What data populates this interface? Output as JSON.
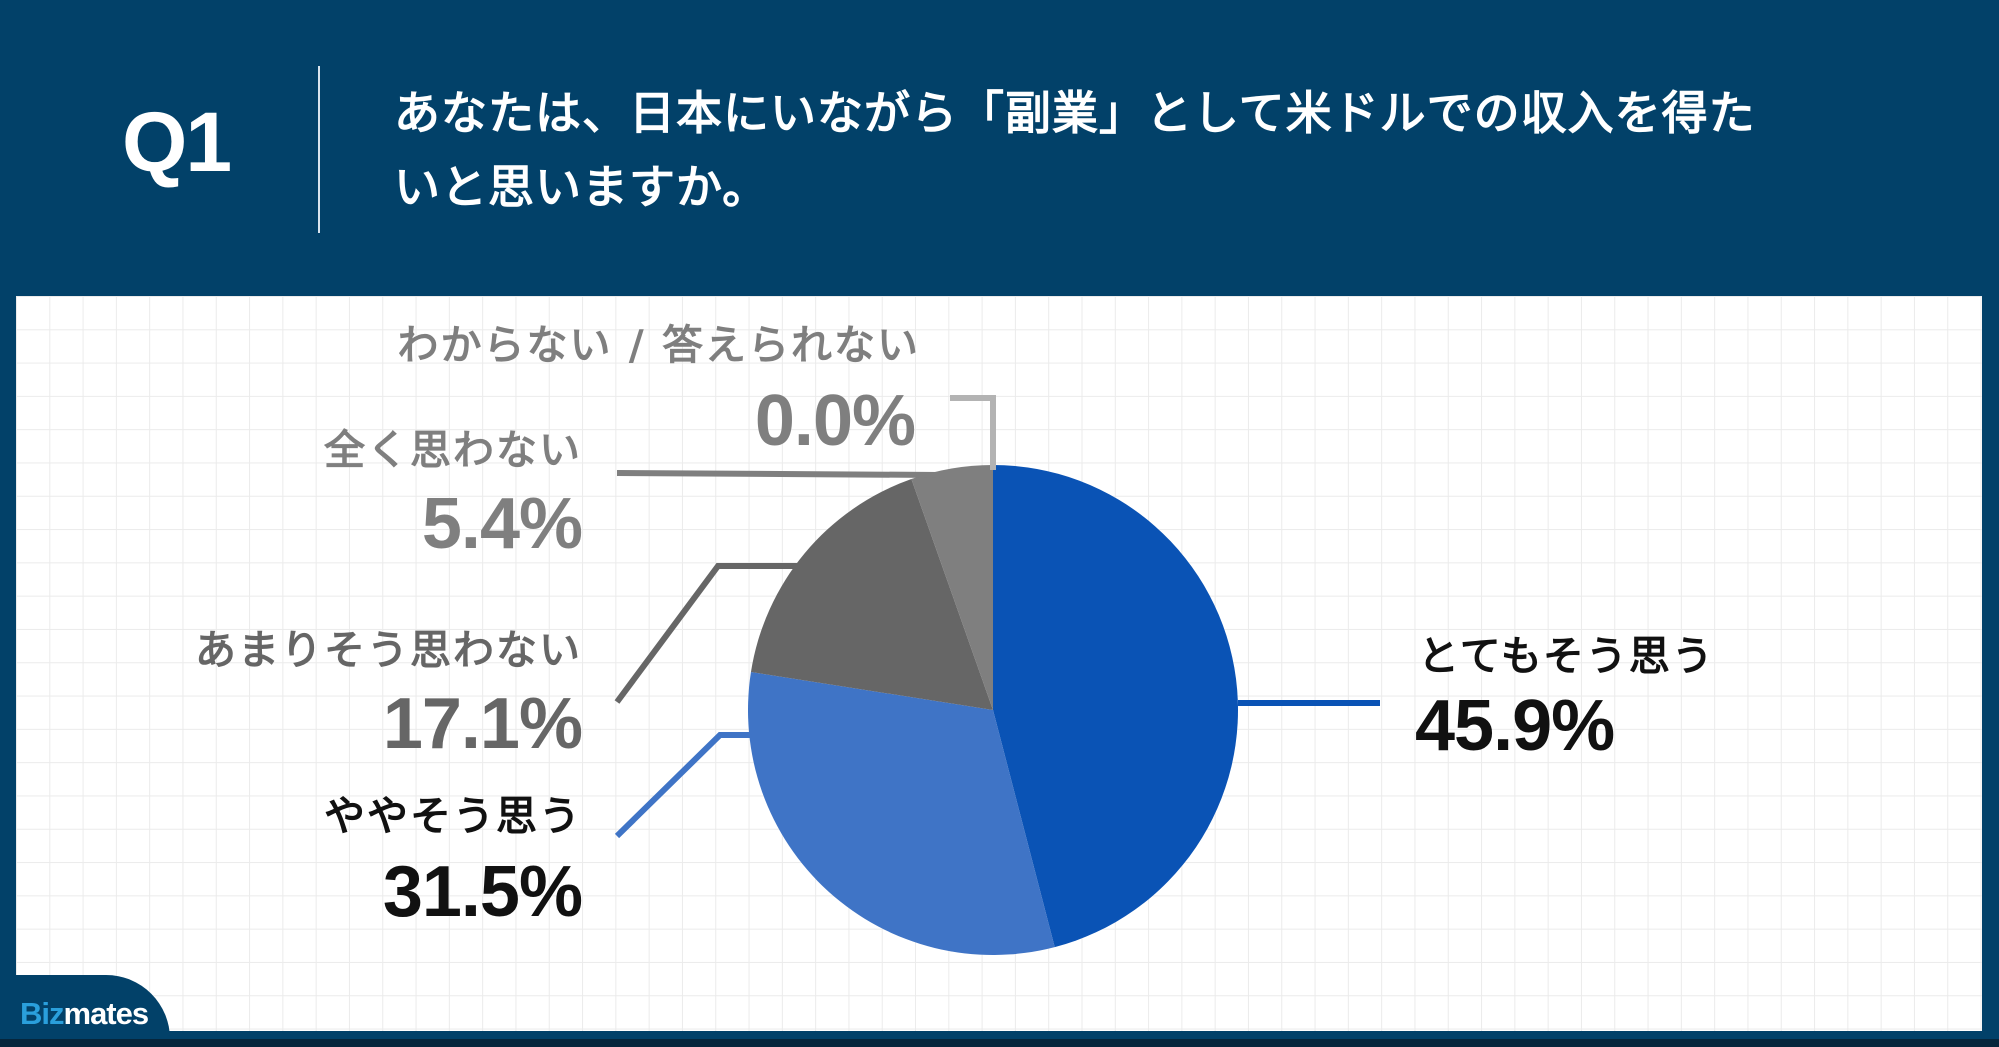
{
  "header": {
    "question_number": "Q1",
    "question_text": "あなたは、日本にいながら「副業」として米ドルでの収入を得たいと思いますか。"
  },
  "brand": {
    "logo_part1": "Biz",
    "logo_part2": "mates"
  },
  "colors": {
    "background": "#024169",
    "panel": "#ffffff",
    "grid": "#ebebeb",
    "strongly_agree": "#0a53b5",
    "somewhat_agree": "#3f74c6",
    "not_really": "#666666",
    "not_at_all": "#7f7f7f",
    "dont_know": "#b3b3b3"
  },
  "labels": {
    "strongly_agree": {
      "name": "とてもそう思う",
      "value": "45.9%"
    },
    "somewhat_agree": {
      "name": "ややそう思う",
      "value": "31.5%"
    },
    "not_really": {
      "name": "あまりそう思わない",
      "value": "17.1%"
    },
    "not_at_all": {
      "name": "全く思わない",
      "value": "5.4%"
    },
    "dont_know": {
      "name": "わからない / 答えられない",
      "value": "0.0%"
    }
  },
  "chart_data": {
    "type": "pie",
    "title": "あなたは、日本にいながら「副業」として米ドルでの収入を得たいと思いますか。",
    "categories": [
      "とてもそう思う",
      "ややそう思う",
      "あまりそう思わない",
      "全く思わない",
      "わからない / 答えられない"
    ],
    "values": [
      45.9,
      31.5,
      17.1,
      5.4,
      0.0
    ],
    "unit": "%",
    "colors": [
      "#0a53b5",
      "#3f74c6",
      "#666666",
      "#7f7f7f",
      "#b3b3b3"
    ],
    "start_angle": "12 o'clock",
    "direction": "clockwise",
    "legend": "none (leader-line data labels)",
    "grid": false
  }
}
